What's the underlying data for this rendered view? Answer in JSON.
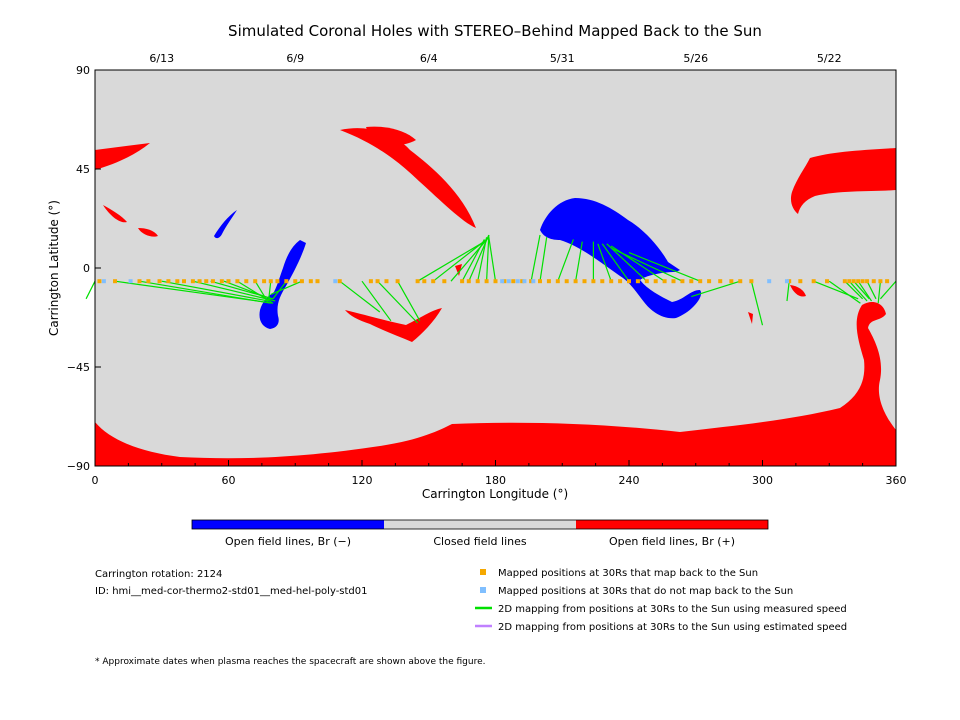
{
  "chart_data": {
    "type": "map",
    "title": "Simulated Coronal Holes with STEREO–Behind Mapped Back to the Sun",
    "xlabel": "Carrington Longitude (°)",
    "ylabel": "Carrington Latitude (°)",
    "xlim": [
      0,
      360
    ],
    "ylim": [
      -90,
      90
    ],
    "x_ticks": [
      "0",
      "60",
      "120",
      "180",
      "240",
      "300",
      "360"
    ],
    "y_ticks": [
      "90",
      "45",
      "0",
      "−45",
      "−90"
    ],
    "top_dates": [
      {
        "label": "6/13",
        "lon": 30
      },
      {
        "label": "6/9",
        "lon": 90
      },
      {
        "label": "6/4",
        "lon": 150
      },
      {
        "label": "5/31",
        "lon": 210
      },
      {
        "label": "5/26",
        "lon": 270
      },
      {
        "label": "5/22",
        "lon": 330
      }
    ],
    "colors": {
      "closed": "#d9d9d9",
      "open_neg": "#0000ff",
      "open_pos": "#ff0000",
      "mapped": "#f5a800",
      "unmapped": "#80bfff",
      "measured": "#00e000",
      "estimated": "#c080ff"
    },
    "colorbar": [
      {
        "label": "Open field lines, Br (−)",
        "color": "#0000ff"
      },
      {
        "label": "Closed field lines",
        "color": "#d9d9d9"
      },
      {
        "label": "Open field lines, Br (+)",
        "color": "#ff0000"
      }
    ],
    "legend": [
      {
        "label": "Mapped positions at 30Rs that map back to the Sun",
        "kind": "square",
        "color": "#f5a800"
      },
      {
        "label": "Mapped positions at 30Rs that do not map back to the Sun",
        "kind": "square",
        "color": "#80bfff"
      },
      {
        "label": "2D mapping from positions at 30Rs to the Sun using measured speed",
        "kind": "line",
        "color": "#00e000"
      },
      {
        "label": "2D mapping from positions at 30Rs to the Sun using estimated speed",
        "kind": "line",
        "color": "#c080ff"
      }
    ],
    "info": {
      "rotation": "Carrington rotation: 2124",
      "id": "ID: hmi__med-cor-thermo2-std01__med-hel-poly-std01"
    },
    "footnote": "* Approximate dates when plasma reaches the spacecraft are shown above the figure.",
    "spacecraft_lat": -6,
    "mapped_lons": [
      2,
      9,
      20,
      24,
      29,
      33,
      37,
      40,
      44,
      47,
      50,
      53,
      57,
      60,
      64,
      68,
      72,
      76,
      79,
      82,
      86,
      90,
      93,
      97,
      100,
      110,
      124,
      127,
      131,
      136,
      145,
      148,
      152,
      157,
      165,
      168,
      172,
      176,
      180,
      184,
      188,
      192,
      196,
      200,
      204,
      208,
      212,
      216,
      220,
      224,
      228,
      232,
      236,
      240,
      244,
      248,
      252,
      256,
      260,
      264,
      268,
      272,
      276,
      281,
      286,
      290,
      295,
      312,
      317,
      323,
      329,
      337,
      339,
      341,
      343,
      345,
      347,
      350,
      353,
      356
    ],
    "unmapped_lons": [
      4,
      16,
      108,
      183,
      186,
      190,
      193,
      197,
      303,
      311
    ],
    "mappings": [
      [
        0,
        -6,
        -4,
        -14
      ],
      [
        9,
        -6,
        80,
        -16
      ],
      [
        20,
        -6,
        79,
        -16
      ],
      [
        30,
        -6,
        78,
        -15
      ],
      [
        44,
        -6,
        81,
        -15
      ],
      [
        52,
        -6,
        80,
        -14
      ],
      [
        58,
        -6,
        79,
        -14
      ],
      [
        64,
        -6,
        80,
        -16
      ],
      [
        72,
        -6,
        78,
        -16
      ],
      [
        79,
        -6,
        78,
        -15
      ],
      [
        86,
        -6,
        80,
        -14
      ],
      [
        93,
        -6,
        79,
        -12
      ],
      [
        110,
        -6,
        128,
        -20
      ],
      [
        120,
        -6,
        133,
        -24
      ],
      [
        127,
        -6,
        145,
        -25
      ],
      [
        136,
        -6,
        146,
        -24
      ],
      [
        145,
        -6,
        175,
        12
      ],
      [
        152,
        -6,
        176,
        13
      ],
      [
        160,
        -6,
        177,
        14
      ],
      [
        165,
        -6,
        175,
        13
      ],
      [
        168,
        -6,
        177,
        15
      ],
      [
        172,
        -6,
        176,
        14
      ],
      [
        176,
        -6,
        177,
        15
      ],
      [
        180,
        -6,
        177,
        14
      ],
      [
        196,
        -6,
        200,
        15
      ],
      [
        200,
        -6,
        203,
        14
      ],
      [
        208,
        -6,
        215,
        13
      ],
      [
        216,
        -6,
        219,
        12
      ],
      [
        224,
        -6,
        224,
        12
      ],
      [
        232,
        -6,
        226,
        11
      ],
      [
        240,
        -6,
        228,
        11
      ],
      [
        248,
        -6,
        230,
        11
      ],
      [
        256,
        -6,
        232,
        10
      ],
      [
        264,
        -6,
        232,
        9
      ],
      [
        272,
        -6,
        240,
        7
      ],
      [
        290,
        -6,
        268,
        -13
      ],
      [
        295,
        -6,
        300,
        -26
      ],
      [
        312,
        -6,
        311,
        -15
      ],
      [
        323,
        -6,
        343,
        -14
      ],
      [
        330,
        -6,
        344,
        -16
      ],
      [
        337,
        -6,
        345,
        -14
      ],
      [
        339,
        -6,
        347,
        -15
      ],
      [
        341,
        -6,
        348,
        -14
      ],
      [
        343,
        -6,
        349,
        -15
      ],
      [
        347,
        -6,
        351,
        -14
      ],
      [
        353,
        -6,
        352,
        -16
      ],
      [
        360,
        -6,
        353,
        -14
      ]
    ]
  }
}
